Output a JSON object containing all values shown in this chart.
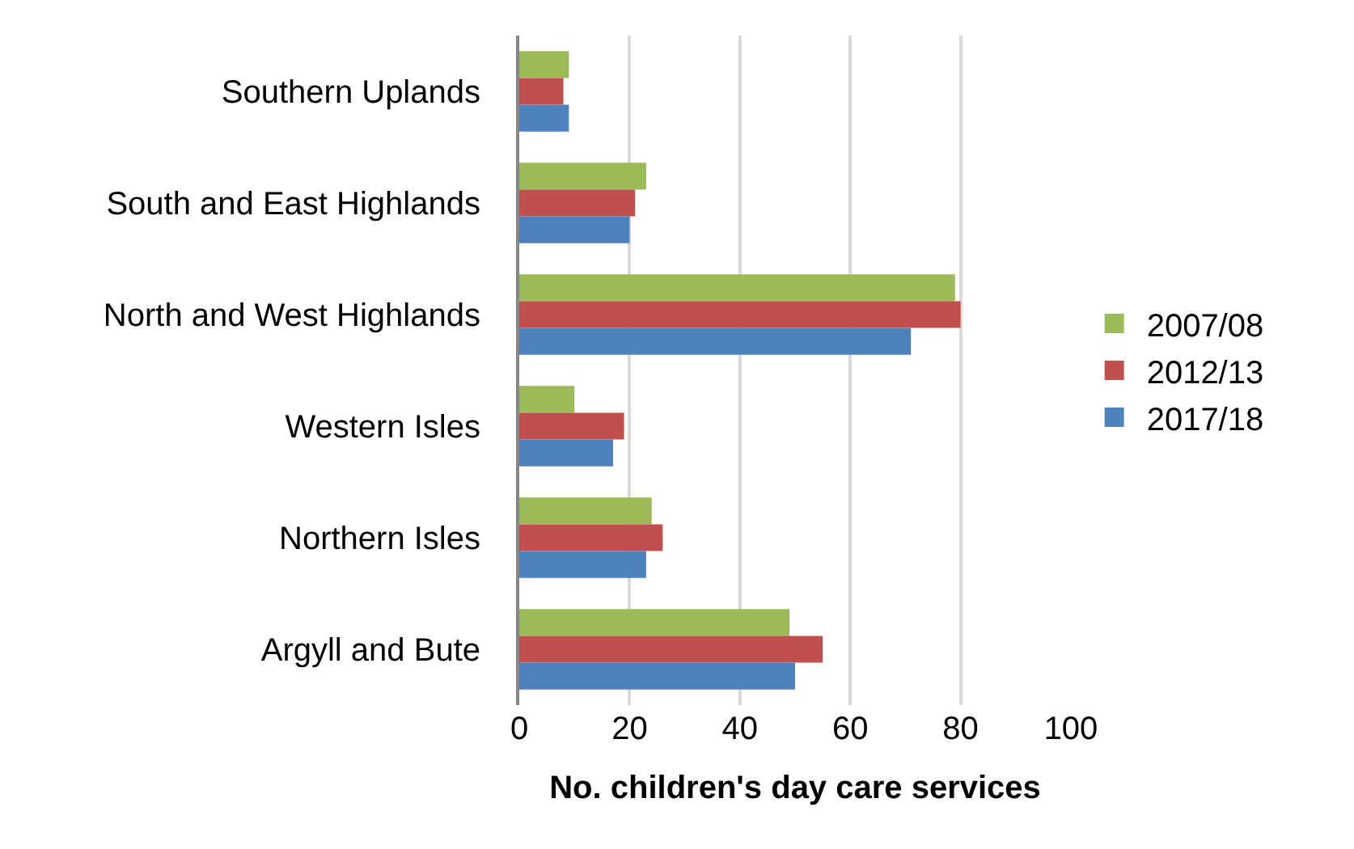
{
  "chart_data": {
    "type": "bar",
    "orientation": "horizontal",
    "xlabel": "No. children's day care services",
    "categories": [
      "Southern Uplands",
      "South and East Highlands",
      "North and West Highlands",
      "Western Isles",
      "Northern Isles",
      "Argyll and Bute"
    ],
    "series": [
      {
        "name": "2007/08",
        "color": "#9bbb59",
        "values": [
          9,
          23,
          79,
          10,
          24,
          49
        ]
      },
      {
        "name": "2012/13",
        "color": "#c0504d",
        "values": [
          8,
          21,
          80,
          19,
          26,
          55
        ]
      },
      {
        "name": "2017/18",
        "color": "#4f81bd",
        "values": [
          9,
          20,
          71,
          17,
          23,
          50
        ]
      }
    ],
    "xlim": [
      0,
      100
    ],
    "xticks": [
      0,
      20,
      40,
      60,
      80,
      100
    ],
    "grid": "x",
    "legend": "right"
  }
}
